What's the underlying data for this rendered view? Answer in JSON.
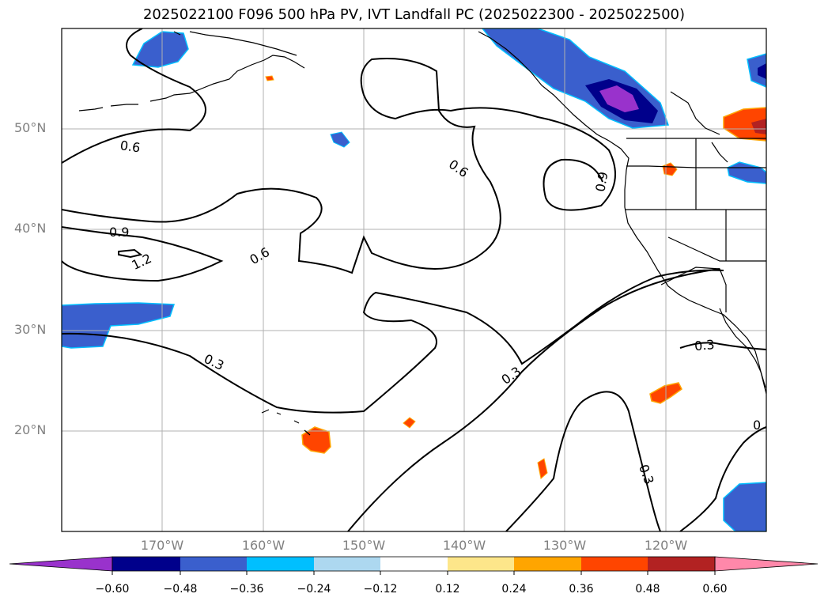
{
  "title": "2025022100 F096 500 hPa PV, IVT Landfall PC (2025022300 - 2025022500)",
  "map": {
    "projection": "PlateCarree",
    "lon_range": [
      -180,
      -110
    ],
    "lat_range": [
      10,
      60
    ],
    "gridlines": true,
    "lat_labels": [
      "50°N",
      "40°N",
      "30°N",
      "20°N"
    ],
    "lon_labels": [
      "170°W",
      "160°W",
      "150°W",
      "140°W",
      "130°W",
      "120°W"
    ],
    "contour_labels": [
      "0.6",
      "0.9",
      "1.2",
      "0.6",
      "0.6",
      "0.9",
      "0.3",
      "0.3",
      "0.3",
      "0.3",
      "0"
    ]
  },
  "colorbar": {
    "extend": "both",
    "tick_labels": [
      "−0.60",
      "−0.48",
      "−0.36",
      "−0.24",
      "−0.12",
      "0.12",
      "0.24",
      "0.36",
      "0.48",
      "0.60"
    ],
    "colors": [
      "#9932cc",
      "#00008b",
      "#3a5fcd",
      "#00bfff",
      "#add8f0",
      "#ffffff",
      "#fde68a",
      "#ffa500",
      "#ff4500",
      "#b22222",
      "#ff88aa"
    ]
  }
}
